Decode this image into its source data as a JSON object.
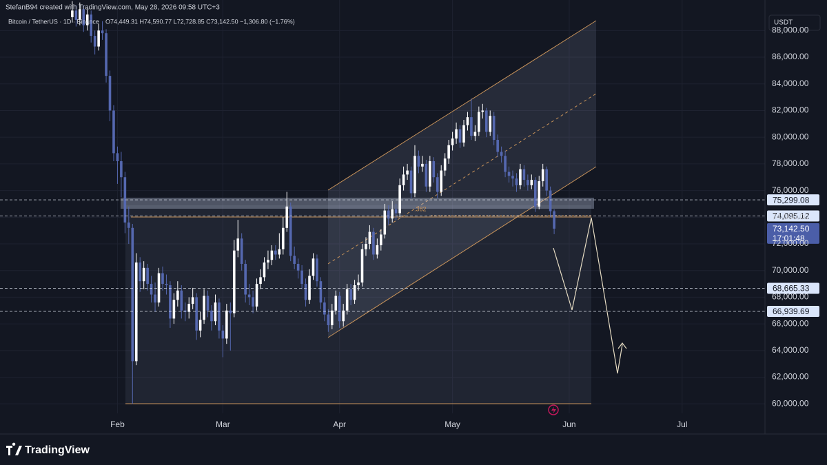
{
  "header": {
    "credit": "StefanB94 created with TradingView.com, May 28, 2026 09:58 UTC+3",
    "symbol": "Bitcoin / TetherUS · 1D · Binance",
    "ohlc": "O74,449.31 H74,590.77 L72,728.85 C73,142.50 −1,306.80 (−1.76%)",
    "currency": "USDT"
  },
  "chart_data": {
    "type": "candlestick",
    "x": [
      19,
      20,
      21,
      22,
      23,
      24,
      25,
      26,
      27,
      28,
      29,
      30,
      31,
      32,
      33,
      34,
      35,
      36,
      37,
      38,
      39,
      40,
      41,
      42,
      43,
      44,
      45,
      46,
      47,
      48,
      49,
      50,
      51,
      52,
      53,
      54,
      55,
      56,
      57,
      58,
      59,
      60,
      61,
      62,
      63,
      64,
      65,
      66,
      67,
      68,
      69,
      70,
      71,
      72,
      73,
      74,
      75,
      76,
      77,
      78,
      79,
      80,
      81,
      82,
      83,
      84,
      85,
      86,
      87,
      88,
      89,
      90,
      91,
      92,
      93,
      94,
      95,
      96,
      97,
      98,
      99,
      100,
      101,
      102,
      103,
      104,
      105,
      106,
      107,
      108,
      109,
      110,
      111,
      112,
      113,
      114,
      115,
      116,
      117,
      118,
      119,
      120,
      121,
      122,
      123,
      124,
      125,
      126,
      127,
      128,
      129,
      130,
      131,
      132,
      133,
      134,
      135,
      136,
      137,
      138,
      139,
      140,
      141,
      142,
      143,
      144,
      145,
      146,
      147
    ],
    "open": [
      89000,
      89500,
      88800,
      89600,
      88400,
      89200,
      87600,
      86800,
      88000,
      87800,
      84600,
      82000,
      78800,
      78200,
      77000,
      73600,
      73200,
      63200,
      70600,
      69200,
      70200,
      69000,
      68200,
      67600,
      69800,
      69000,
      68900,
      66400,
      67800,
      68500,
      67000,
      66900,
      67500,
      68000,
      65500,
      66300,
      68100,
      67000,
      66200,
      67600,
      65500,
      64900,
      67000,
      66800,
      71500,
      72400,
      70500,
      68200,
      68000,
      67300,
      69000,
      69500,
      70600,
      70800,
      71500,
      71200,
      71600,
      73200,
      74800,
      71100,
      70500,
      70000,
      69000,
      67800,
      69600,
      70900,
      69200,
      67600,
      66700,
      65900,
      67000,
      68100,
      66200,
      67000,
      68600,
      67800,
      68900,
      69100,
      71600,
      72000,
      72900,
      71200,
      71900,
      72700,
      74500,
      73900,
      74600,
      74300,
      76400,
      77200,
      77500,
      75800,
      78600,
      77800,
      78000,
      76300,
      78200,
      77000,
      75900,
      77500,
      78400,
      79400,
      79900,
      80600,
      79600,
      80900,
      81500,
      80100,
      80400,
      81900,
      82000,
      80400,
      81600,
      79800,
      78900,
      78600,
      77400,
      77100,
      76900,
      76400,
      77600,
      76800,
      76400,
      76800,
      74800,
      76700,
      77600,
      76000,
      74449.31
    ],
    "high": [
      90200,
      89900,
      90100,
      89900,
      89600,
      89500,
      88000,
      88500,
      88700,
      88100,
      85000,
      82400,
      79300,
      78900,
      77400,
      74800,
      73500,
      71300,
      71000,
      70700,
      70500,
      69600,
      69100,
      70200,
      70300,
      69700,
      69200,
      68300,
      69200,
      68900,
      67600,
      68000,
      68700,
      68300,
      66900,
      68600,
      68500,
      67400,
      68200,
      67900,
      65900,
      67500,
      67600,
      72300,
      73800,
      72800,
      70800,
      69000,
      68500,
      69400,
      70100,
      71000,
      71500,
      71900,
      71900,
      72800,
      74000,
      75900,
      75100,
      71800,
      70900,
      70400,
      69400,
      70100,
      71300,
      71200,
      69500,
      68000,
      67100,
      67500,
      68500,
      68400,
      67500,
      69000,
      69000,
      69300,
      69700,
      72000,
      72500,
      73400,
      73200,
      72400,
      73100,
      75000,
      74900,
      75200,
      75000,
      76900,
      77800,
      78000,
      77800,
      79400,
      79000,
      78600,
      78300,
      78600,
      78500,
      77300,
      77900,
      78800,
      79800,
      80400,
      81100,
      80900,
      81300,
      81900,
      82900,
      80900,
      82300,
      82500,
      82200,
      82000,
      81900,
      80200,
      79300,
      79000,
      77800,
      77500,
      77300,
      78000,
      77900,
      77200,
      77200,
      77000,
      77100,
      78000,
      77800,
      76300,
      74590.77
    ],
    "low": [
      88600,
      88300,
      88400,
      87900,
      88000,
      87100,
      86200,
      86500,
      87300,
      84100,
      81200,
      78200,
      76500,
      75500,
      72800,
      72000,
      60000,
      62900,
      68400,
      68600,
      68500,
      67600,
      66900,
      67300,
      68500,
      68200,
      65700,
      66000,
      67300,
      66400,
      66200,
      66400,
      67100,
      64800,
      65000,
      66000,
      66500,
      65500,
      65900,
      64900,
      63500,
      64500,
      64000,
      66500,
      71000,
      70000,
      67600,
      67400,
      66800,
      67000,
      68600,
      69200,
      70100,
      70400,
      70800,
      70900,
      71200,
      72900,
      70700,
      70100,
      69400,
      68600,
      67300,
      67500,
      69300,
      68800,
      67100,
      66200,
      65400,
      65600,
      66700,
      65700,
      65800,
      66700,
      67400,
      67500,
      68500,
      68800,
      71100,
      71600,
      70800,
      70900,
      71500,
      72400,
      73400,
      73600,
      73800,
      74000,
      76000,
      76800,
      75400,
      75500,
      77300,
      77400,
      75900,
      75900,
      76600,
      75400,
      75600,
      77100,
      78000,
      79000,
      79500,
      79200,
      79300,
      80500,
      79800,
      79700,
      80100,
      81400,
      80000,
      80100,
      79400,
      78500,
      78100,
      77000,
      76600,
      76300,
      75900,
      76100,
      76300,
      76000,
      76100,
      74400,
      74600,
      76300,
      75600,
      74000,
      72728.85
    ],
    "close": [
      89500,
      88800,
      89600,
      88400,
      89200,
      87600,
      86800,
      88000,
      87800,
      84600,
      82000,
      78800,
      78200,
      77000,
      73600,
      73200,
      63200,
      70600,
      69200,
      70200,
      69000,
      68200,
      67600,
      69800,
      69000,
      68900,
      66400,
      67800,
      68500,
      67000,
      66900,
      67500,
      68000,
      65500,
      66300,
      68100,
      67000,
      66200,
      67600,
      65500,
      64900,
      67000,
      66800,
      71500,
      72400,
      70500,
      68200,
      68000,
      67300,
      69000,
      69500,
      70600,
      70800,
      71500,
      71200,
      71600,
      73200,
      74800,
      71100,
      70500,
      70000,
      69000,
      67800,
      69600,
      70900,
      69200,
      67600,
      66700,
      65900,
      67000,
      68100,
      66200,
      67000,
      68600,
      67800,
      68900,
      69100,
      71600,
      72000,
      72900,
      71200,
      71900,
      72700,
      74500,
      73900,
      74600,
      74300,
      76400,
      77200,
      77500,
      75800,
      78600,
      77800,
      78000,
      76300,
      78200,
      77000,
      75900,
      77500,
      78400,
      79400,
      79900,
      80600,
      79600,
      80900,
      81500,
      80100,
      80400,
      81900,
      82000,
      80400,
      81600,
      79800,
      78900,
      78600,
      77400,
      77100,
      76900,
      76400,
      77600,
      76800,
      76400,
      76800,
      74800,
      76700,
      77600,
      76000,
      74450,
      73142.5
    ],
    "up_color": "#ffffff",
    "down_color": "#5568b0",
    "xlim": [
      -0.2,
      203
    ],
    "ylim": [
      57740,
      90290
    ],
    "xticks": [
      {
        "value": 31,
        "label": "Feb"
      },
      {
        "value": 59,
        "label": "Mar"
      },
      {
        "value": 90,
        "label": "Apr"
      },
      {
        "value": 120,
        "label": "May"
      },
      {
        "value": 151,
        "label": "Jun"
      },
      {
        "value": 181,
        "label": "Jul"
      }
    ],
    "yticks": [
      {
        "value": 60000,
        "label": "60,000.00"
      },
      {
        "value": 62000,
        "label": "62,000.00"
      },
      {
        "value": 64000,
        "label": "64,000.00"
      },
      {
        "value": 66000,
        "label": "66,000.00"
      },
      {
        "value": 68000,
        "label": "68,000.00"
      },
      {
        "value": 70000,
        "label": "70,000.00"
      },
      {
        "value": 72000,
        "label": "72,000.00"
      },
      {
        "value": 74000,
        "label": "74,000.00"
      },
      {
        "value": 76000,
        "label": "76,000.00"
      },
      {
        "value": 78000,
        "label": "78,000.00"
      },
      {
        "value": 80000,
        "label": "80,000.00"
      },
      {
        "value": 82000,
        "label": "82,000.00"
      },
      {
        "value": 84000,
        "label": "84,000.00"
      },
      {
        "value": 86000,
        "label": "86,000.00"
      },
      {
        "value": 88000,
        "label": "88,000.00"
      }
    ],
    "grid": true,
    "levels": [
      {
        "value": 75299.08,
        "label": "75,299.08"
      },
      {
        "value": 74095.12,
        "label": "74,095.12"
      },
      {
        "value": 68665.33,
        "label": "68,665.33"
      },
      {
        "value": 66939.69,
        "label": "66,939.69"
      }
    ],
    "last_price": {
      "value": 73142.5,
      "label": "73,142.50"
    },
    "countdown": "17:01:48",
    "annotation": ".382"
  },
  "footer": {
    "brand": "TradingView"
  }
}
